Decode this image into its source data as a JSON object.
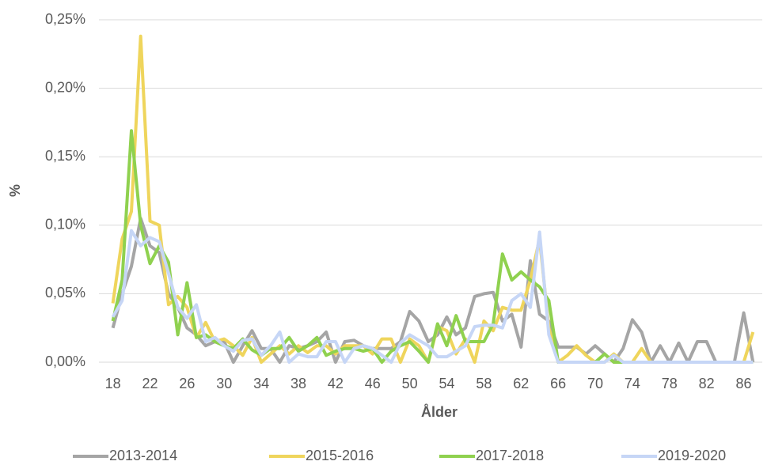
{
  "chart_data": {
    "type": "line",
    "x_label": "Ålder",
    "y_label": "%",
    "x": [
      18,
      19,
      20,
      21,
      22,
      23,
      24,
      25,
      26,
      27,
      28,
      29,
      30,
      31,
      32,
      33,
      34,
      35,
      36,
      37,
      38,
      39,
      40,
      41,
      42,
      43,
      44,
      45,
      46,
      47,
      48,
      49,
      50,
      51,
      52,
      53,
      54,
      55,
      56,
      57,
      58,
      59,
      60,
      61,
      62,
      63,
      64,
      65,
      66,
      67,
      68,
      69,
      70,
      71,
      72,
      73,
      74,
      75,
      76,
      77,
      78,
      79,
      80,
      81,
      82,
      83,
      84,
      85,
      86,
      87
    ],
    "xlim": [
      16.5,
      88
    ],
    "xticks": [
      18,
      22,
      26,
      30,
      34,
      38,
      42,
      46,
      50,
      54,
      58,
      62,
      66,
      70,
      74,
      78,
      82,
      86
    ],
    "ylim": [
      0,
      0.25
    ],
    "yticks": [
      {
        "value": 0,
        "label": "0,00%"
      },
      {
        "value": 0.05,
        "label": "0,05%"
      },
      {
        "value": 0.1,
        "label": "0,10%"
      },
      {
        "value": 0.15,
        "label": "0,15%"
      },
      {
        "value": 0.2,
        "label": "0,20%"
      },
      {
        "value": 0.25,
        "label": "0,25%"
      }
    ],
    "grid": true,
    "legend": "bottom",
    "series": [
      {
        "name": "2013-2014",
        "color": "#a5a5a5",
        "values": [
          0.025,
          0.05,
          0.07,
          0.105,
          0.085,
          0.08,
          0.05,
          0.04,
          0.025,
          0.02,
          0.012,
          0.015,
          0.015,
          0,
          0.012,
          0.023,
          0.01,
          0.01,
          0,
          0.012,
          0.01,
          0.012,
          0.015,
          0.022,
          0,
          0.015,
          0.016,
          0.012,
          0.01,
          0.01,
          0.01,
          0.015,
          0.037,
          0.03,
          0.015,
          0.02,
          0.033,
          0.02,
          0.025,
          0.048,
          0.05,
          0.051,
          0.03,
          0.035,
          0.011,
          0.074,
          0.035,
          0.03,
          0.011,
          0.011,
          0.011,
          0.006,
          0.012,
          0.006,
          0,
          0.01,
          0.031,
          0.022,
          0,
          0.012,
          0,
          0.014,
          0,
          0.015,
          0.015,
          0,
          0,
          0,
          0.036,
          0
        ]
      },
      {
        "name": "2015-2016",
        "color": "#efd55c",
        "values": [
          0.043,
          0.09,
          0.11,
          0.238,
          0.103,
          0.1,
          0.042,
          0.048,
          0.04,
          0.018,
          0.029,
          0.015,
          0.017,
          0.012,
          0.005,
          0.018,
          0,
          0.006,
          0.012,
          0.006,
          0.012,
          0.007,
          0.012,
          0.012,
          0.006,
          0.012,
          0.012,
          0.012,
          0.006,
          0.017,
          0.017,
          0,
          0.017,
          0.012,
          0,
          0.026,
          0.023,
          0.006,
          0.017,
          0,
          0.03,
          0.023,
          0.04,
          0.038,
          0.038,
          0.06,
          0.09,
          0.025,
          0,
          0.005,
          0.012,
          0.005,
          0,
          0,
          0.006,
          0,
          0,
          0.01,
          0,
          0,
          0,
          0,
          0,
          0,
          0,
          0,
          0,
          0,
          0,
          0.022
        ]
      },
      {
        "name": "2017-2018",
        "color": "#8fd14f",
        "values": [
          0.03,
          0.06,
          0.169,
          0.1,
          0.072,
          0.085,
          0.073,
          0.02,
          0.058,
          0.018,
          0.02,
          0.015,
          0.012,
          0.01,
          0.017,
          0.009,
          0.005,
          0.01,
          0.01,
          0.018,
          0.008,
          0.012,
          0.018,
          0.005,
          0.008,
          0.01,
          0.01,
          0.008,
          0.01,
          0,
          0.008,
          0.012,
          0.015,
          0.008,
          0,
          0.028,
          0.012,
          0.034,
          0.015,
          0.015,
          0.015,
          0.028,
          0.079,
          0.06,
          0.066,
          0.06,
          0.055,
          0.045,
          0,
          0,
          0,
          0,
          0,
          0.006,
          0,
          0,
          0,
          0,
          0,
          0,
          0,
          0,
          0,
          0,
          0,
          0,
          0,
          0,
          0,
          0
        ]
      },
      {
        "name": "2019-2020",
        "color": "#c6d6f6",
        "values": [
          0.033,
          0.045,
          0.096,
          0.085,
          0.091,
          0.088,
          0.065,
          0.04,
          0.032,
          0.042,
          0.015,
          0.018,
          0.012,
          0.008,
          0.016,
          0.017,
          0.005,
          0.012,
          0.022,
          0,
          0.006,
          0.004,
          0.004,
          0.015,
          0.015,
          0,
          0.01,
          0.012,
          0.01,
          0.005,
          0,
          0.014,
          0.02,
          0.016,
          0.012,
          0.004,
          0.004,
          0.008,
          0.012,
          0.026,
          0.027,
          0.027,
          0.025,
          0.045,
          0.05,
          0.04,
          0.095,
          0.02,
          0,
          0,
          0,
          0,
          0,
          0,
          0.005,
          0,
          0,
          0,
          0,
          0,
          0,
          0,
          0,
          0,
          0,
          0,
          0,
          0,
          0,
          0
        ]
      }
    ]
  }
}
